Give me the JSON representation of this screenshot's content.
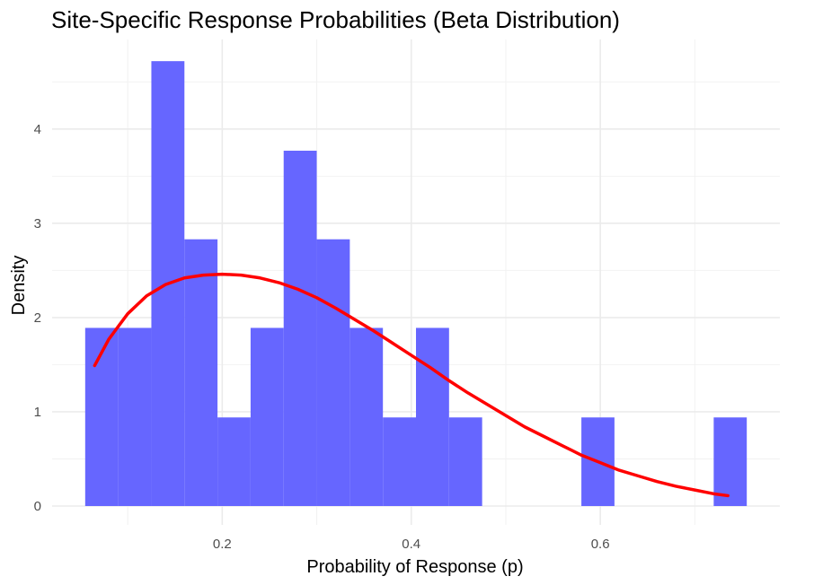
{
  "chart_data": {
    "type": "bar",
    "subtype": "histogram-with-density-curve",
    "title": "Site-Specific Response Probabilities (Beta Distribution)",
    "xlabel": "Probability of Response (p)",
    "ylabel": "Density",
    "xlim": [
      0.02,
      0.79
    ],
    "ylim": [
      -0.2,
      4.95
    ],
    "x_ticks": [
      0.2,
      0.4,
      0.6
    ],
    "x_tick_labels": [
      "0.2",
      "0.4",
      "0.6"
    ],
    "y_ticks": [
      0,
      1,
      2,
      3,
      4
    ],
    "y_tick_labels": [
      "0",
      "1",
      "2",
      "3",
      "4"
    ],
    "grid": true,
    "bins": [
      {
        "x0": 0.055,
        "x1": 0.09,
        "density": 1.89
      },
      {
        "x0": 0.09,
        "x1": 0.125,
        "density": 1.89
      },
      {
        "x0": 0.125,
        "x1": 0.16,
        "density": 4.72
      },
      {
        "x0": 0.16,
        "x1": 0.195,
        "density": 2.83
      },
      {
        "x0": 0.195,
        "x1": 0.23,
        "density": 0.94
      },
      {
        "x0": 0.23,
        "x1": 0.265,
        "density": 1.89
      },
      {
        "x0": 0.265,
        "x1": 0.3,
        "density": 3.77
      },
      {
        "x0": 0.3,
        "x1": 0.335,
        "density": 2.83
      },
      {
        "x0": 0.335,
        "x1": 0.37,
        "density": 1.89
      },
      {
        "x0": 0.37,
        "x1": 0.405,
        "density": 0.94
      },
      {
        "x0": 0.405,
        "x1": 0.44,
        "density": 1.89
      },
      {
        "x0": 0.44,
        "x1": 0.475,
        "density": 0.94
      },
      {
        "x0": 0.58,
        "x1": 0.615,
        "density": 0.94
      },
      {
        "x0": 0.72,
        "x1": 0.755,
        "density": 0.94
      }
    ],
    "bar_color": "#6666ff",
    "density_curve": {
      "color": "#ff0000",
      "x": [
        0.065,
        0.08,
        0.1,
        0.12,
        0.14,
        0.16,
        0.18,
        0.2,
        0.22,
        0.24,
        0.26,
        0.28,
        0.3,
        0.32,
        0.34,
        0.36,
        0.38,
        0.4,
        0.42,
        0.44,
        0.46,
        0.48,
        0.5,
        0.52,
        0.54,
        0.56,
        0.58,
        0.6,
        0.62,
        0.64,
        0.66,
        0.68,
        0.7,
        0.72,
        0.735
      ],
      "y": [
        1.49,
        1.77,
        2.04,
        2.23,
        2.35,
        2.42,
        2.45,
        2.46,
        2.45,
        2.42,
        2.37,
        2.3,
        2.21,
        2.1,
        1.98,
        1.86,
        1.73,
        1.6,
        1.47,
        1.33,
        1.2,
        1.08,
        0.96,
        0.84,
        0.74,
        0.64,
        0.54,
        0.46,
        0.38,
        0.32,
        0.26,
        0.21,
        0.17,
        0.13,
        0.11
      ]
    }
  }
}
